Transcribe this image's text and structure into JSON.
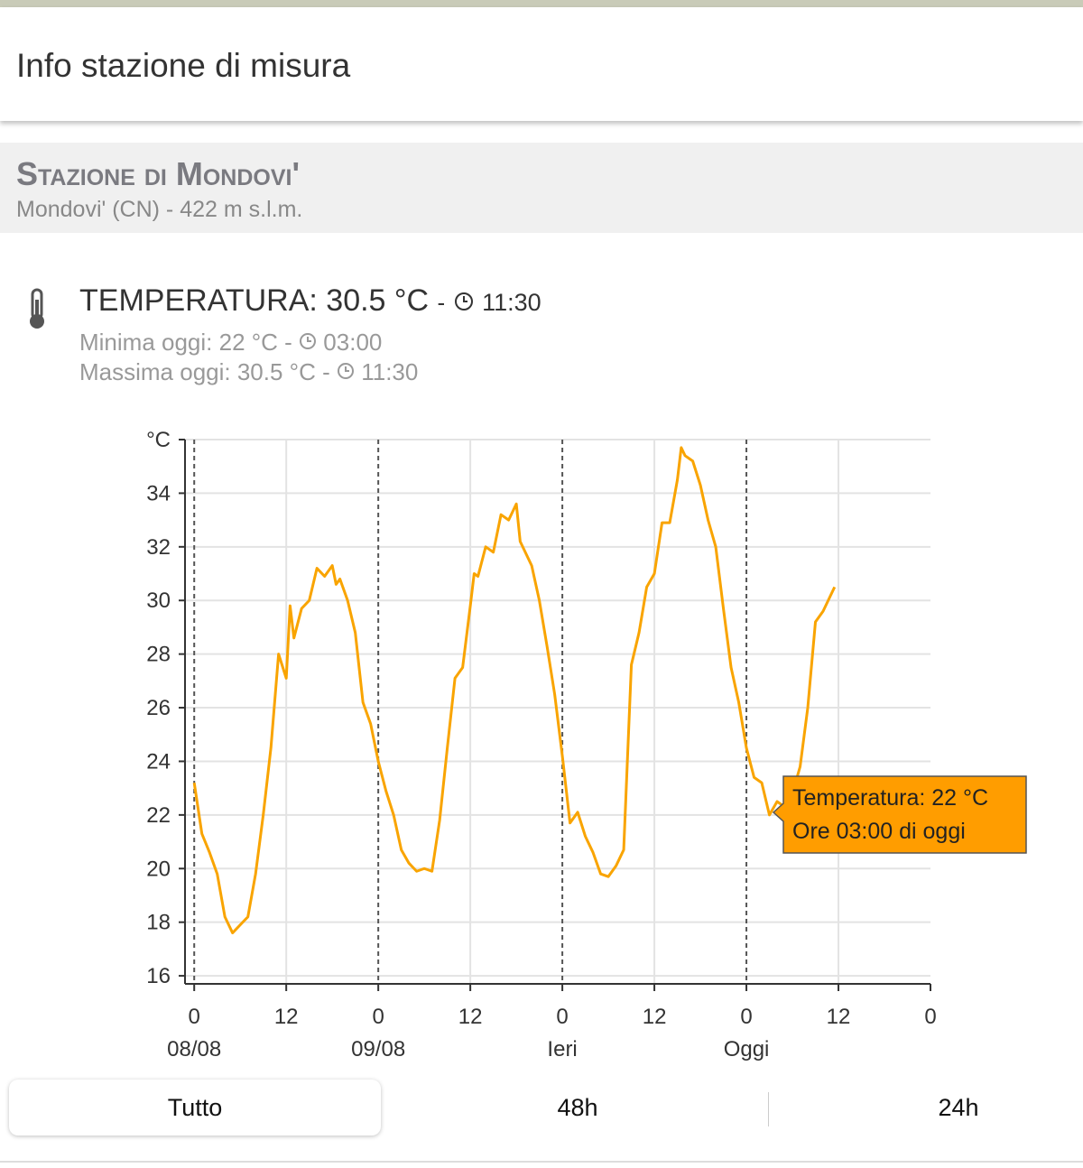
{
  "header": {
    "title": "Info stazione di misura"
  },
  "station": {
    "name": "Stazione di Mondovi'",
    "location": "Mondovi' (CN) - 422 m s.l.m."
  },
  "temperature": {
    "main": "TEMPERATURA: 30.5 °C",
    "main_sep": "-",
    "main_time": "11:30",
    "min": "Minima oggi: 22 °C -",
    "min_time": "03:00",
    "max": "Massima oggi: 30.5 °C -",
    "max_time": "11:30"
  },
  "chart_data": {
    "type": "line",
    "x": [
      0,
      1,
      2,
      3,
      4,
      5,
      6,
      7,
      8,
      9,
      10,
      11,
      12,
      12.5,
      13,
      14,
      15,
      16,
      17,
      18,
      18.5,
      19,
      20,
      21,
      22,
      23,
      23.5,
      24,
      25,
      26,
      27,
      28,
      29,
      30,
      31,
      32,
      33,
      34,
      35,
      36,
      36.5,
      37,
      38,
      39,
      40,
      41,
      42,
      42.5,
      43,
      44,
      45,
      46,
      47,
      48,
      49,
      50,
      51,
      52,
      53,
      54,
      55,
      56,
      57,
      58,
      59,
      60,
      61,
      62,
      63,
      63.5,
      64,
      65,
      66,
      67,
      68,
      69,
      70,
      71,
      72,
      73,
      74,
      75,
      76,
      77,
      78,
      79,
      80,
      81,
      82,
      83,
      83.5
    ],
    "series": [
      {
        "name": "Temperatura",
        "color": "#f9a400",
        "values": [
          23.2,
          21.3,
          20.6,
          19.8,
          18.2,
          17.6,
          17.9,
          18.2,
          19.8,
          22.0,
          24.5,
          28.0,
          27.1,
          29.8,
          28.6,
          29.7,
          30.0,
          31.2,
          30.9,
          31.3,
          30.6,
          30.8,
          30.0,
          28.8,
          26.2,
          25.4,
          24.7,
          24.0,
          22.9,
          22.0,
          20.7,
          20.2,
          19.9,
          20.0,
          19.9,
          21.8,
          24.5,
          27.1,
          27.5,
          29.8,
          31.0,
          30.9,
          32.0,
          31.8,
          33.2,
          33.0,
          33.6,
          32.2,
          31.9,
          31.3,
          30.0,
          28.3,
          26.5,
          24.2,
          21.7,
          22.1,
          21.2,
          20.6,
          19.8,
          19.7,
          20.1,
          20.7,
          27.6,
          28.8,
          30.5,
          31.0,
          32.9,
          32.9,
          34.5,
          35.7,
          35.4,
          35.2,
          34.3,
          33.0,
          32.0,
          29.7,
          27.5,
          26.2,
          24.5,
          23.4,
          23.2,
          22.0,
          22.5,
          22.3,
          22.8,
          23.8,
          26.0,
          29.2,
          29.6,
          30.2,
          30.5
        ]
      }
    ],
    "xlim": [
      -1.2,
      96
    ],
    "xticks": [
      0,
      {
        "value": 12,
        "label": "12"
      },
      {
        "value": 24,
        "label": "0"
      },
      {
        "value": 36,
        "label": "12"
      },
      {
        "value": 48,
        "label": "0"
      },
      {
        "value": 60,
        "label": "12"
      },
      {
        "value": 72,
        "label": "0"
      },
      {
        "value": 84,
        "label": "12"
      },
      {
        "value": 96,
        "label": "0"
      }
    ],
    "x_day_labels": [
      "08/08",
      "09/08",
      "Ieri",
      "Oggi"
    ],
    "ylim": [
      15.7,
      36
    ],
    "yticks": [
      16,
      18,
      20,
      22,
      24,
      26,
      28,
      30,
      32,
      34,
      {
        "value": 36,
        "label": "°C"
      }
    ],
    "grid": true,
    "tooltip": [
      "Temperatura: 22 °C",
      "Ore 03:00 di oggi"
    ]
  },
  "buttons": [
    "Tutto",
    "48h",
    "24h"
  ]
}
